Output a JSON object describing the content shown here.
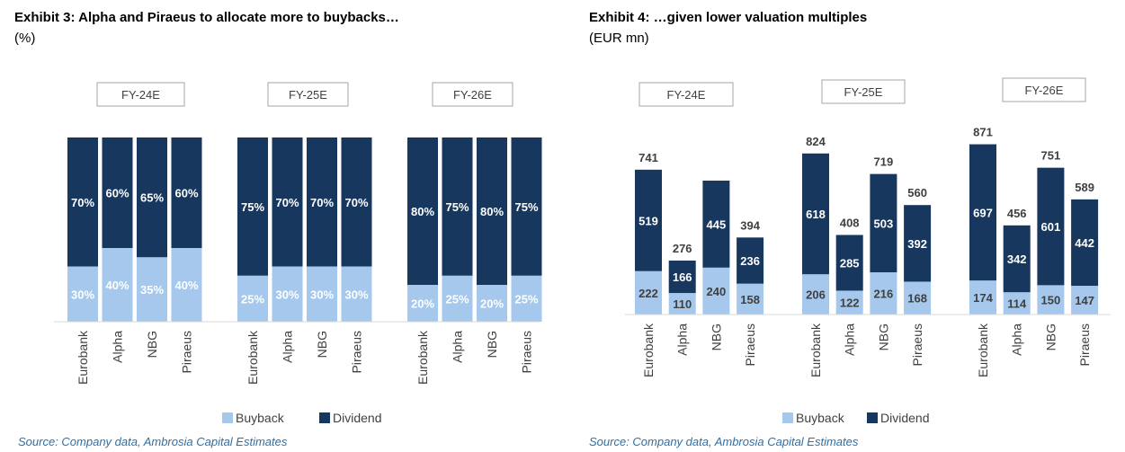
{
  "colors": {
    "buyback": "#a5c8ec",
    "dividend": "#17375e",
    "source_text": "#2f6fa6"
  },
  "left": {
    "title": "Exhibit 3: Alpha and Piraeus to allocate more to buybacks…",
    "unit": "(%)",
    "source": "Source: Company data, Ambrosia Capital Estimates"
  },
  "right": {
    "title": "Exhibit 4: …given lower valuation multiples",
    "unit": "(EUR mn)",
    "source": "Source: Company data, Ambrosia Capital Estimates"
  },
  "chart_data": [
    {
      "type": "bar",
      "stacked": true,
      "title": "Exhibit 3: Alpha and Piraeus to allocate more to buybacks…",
      "unit": "(%)",
      "groups": [
        "FY-24E",
        "FY-25E",
        "FY-26E"
      ],
      "categories": [
        "Eurobank",
        "Alpha",
        "NBG",
        "Piraeus"
      ],
      "series": [
        {
          "name": "Buyback",
          "values": [
            [
              30,
              40,
              35,
              40
            ],
            [
              25,
              30,
              30,
              30
            ],
            [
              20,
              25,
              20,
              25
            ]
          ]
        },
        {
          "name": "Dividend",
          "values": [
            [
              70,
              60,
              65,
              60
            ],
            [
              75,
              70,
              70,
              70
            ],
            [
              80,
              75,
              80,
              75
            ]
          ]
        }
      ],
      "labels": {
        "Buyback": [
          [
            "30%",
            "40%",
            "35%",
            "40%"
          ],
          [
            "25%",
            "30%",
            "30%",
            "30%"
          ],
          [
            "20%",
            "25%",
            "20%",
            "25%"
          ]
        ],
        "Dividend": [
          [
            "70%",
            "60%",
            "65%",
            "60%"
          ],
          [
            "75%",
            "70%",
            "70%",
            "70%"
          ],
          [
            "80%",
            "75%",
            "80%",
            "75%"
          ]
        ]
      },
      "ylim": [
        0,
        100
      ],
      "legend": [
        "Buyback",
        "Dividend"
      ],
      "legend_position": "bottom",
      "grid": false
    },
    {
      "type": "bar",
      "stacked": true,
      "title": "Exhibit 4: …given lower valuation multiples",
      "unit": "(EUR mn)",
      "groups": [
        "FY-24E",
        "FY-25E",
        "FY-26E"
      ],
      "categories": [
        "Eurobank",
        "Alpha",
        "NBG",
        "Piraeus"
      ],
      "series": [
        {
          "name": "Buyback",
          "values": [
            [
              222,
              110,
              240,
              158
            ],
            [
              206,
              122,
              216,
              168
            ],
            [
              174,
              114,
              150,
              147
            ]
          ]
        },
        {
          "name": "Dividend",
          "values": [
            [
              519,
              166,
              445,
              236
            ],
            [
              618,
              285,
              503,
              392
            ],
            [
              697,
              342,
              601,
              442
            ]
          ]
        }
      ],
      "totals": [
        [
          741,
          276,
          685,
          394
        ],
        [
          824,
          408,
          719,
          560
        ],
        [
          871,
          456,
          751,
          589
        ]
      ],
      "total_labels": [
        [
          "741",
          "276",
          "",
          "394"
        ],
        [
          "824",
          "408",
          "719",
          "560"
        ],
        [
          "871",
          "456",
          "751",
          "589"
        ]
      ],
      "labels": {
        "Buyback": [
          [
            "222",
            "110",
            "240",
            "158"
          ],
          [
            "206",
            "122",
            "216",
            "168"
          ],
          [
            "174",
            "114",
            "150",
            "147"
          ]
        ],
        "Dividend": [
          [
            "519",
            "166",
            "445",
            "236"
          ],
          [
            "618",
            "285",
            "503",
            "392"
          ],
          [
            "697",
            "342",
            "601",
            "442"
          ]
        ]
      },
      "ylim": [
        0,
        1000
      ],
      "legend": [
        "Buyback",
        "Dividend"
      ],
      "legend_position": "bottom",
      "grid": false
    }
  ]
}
